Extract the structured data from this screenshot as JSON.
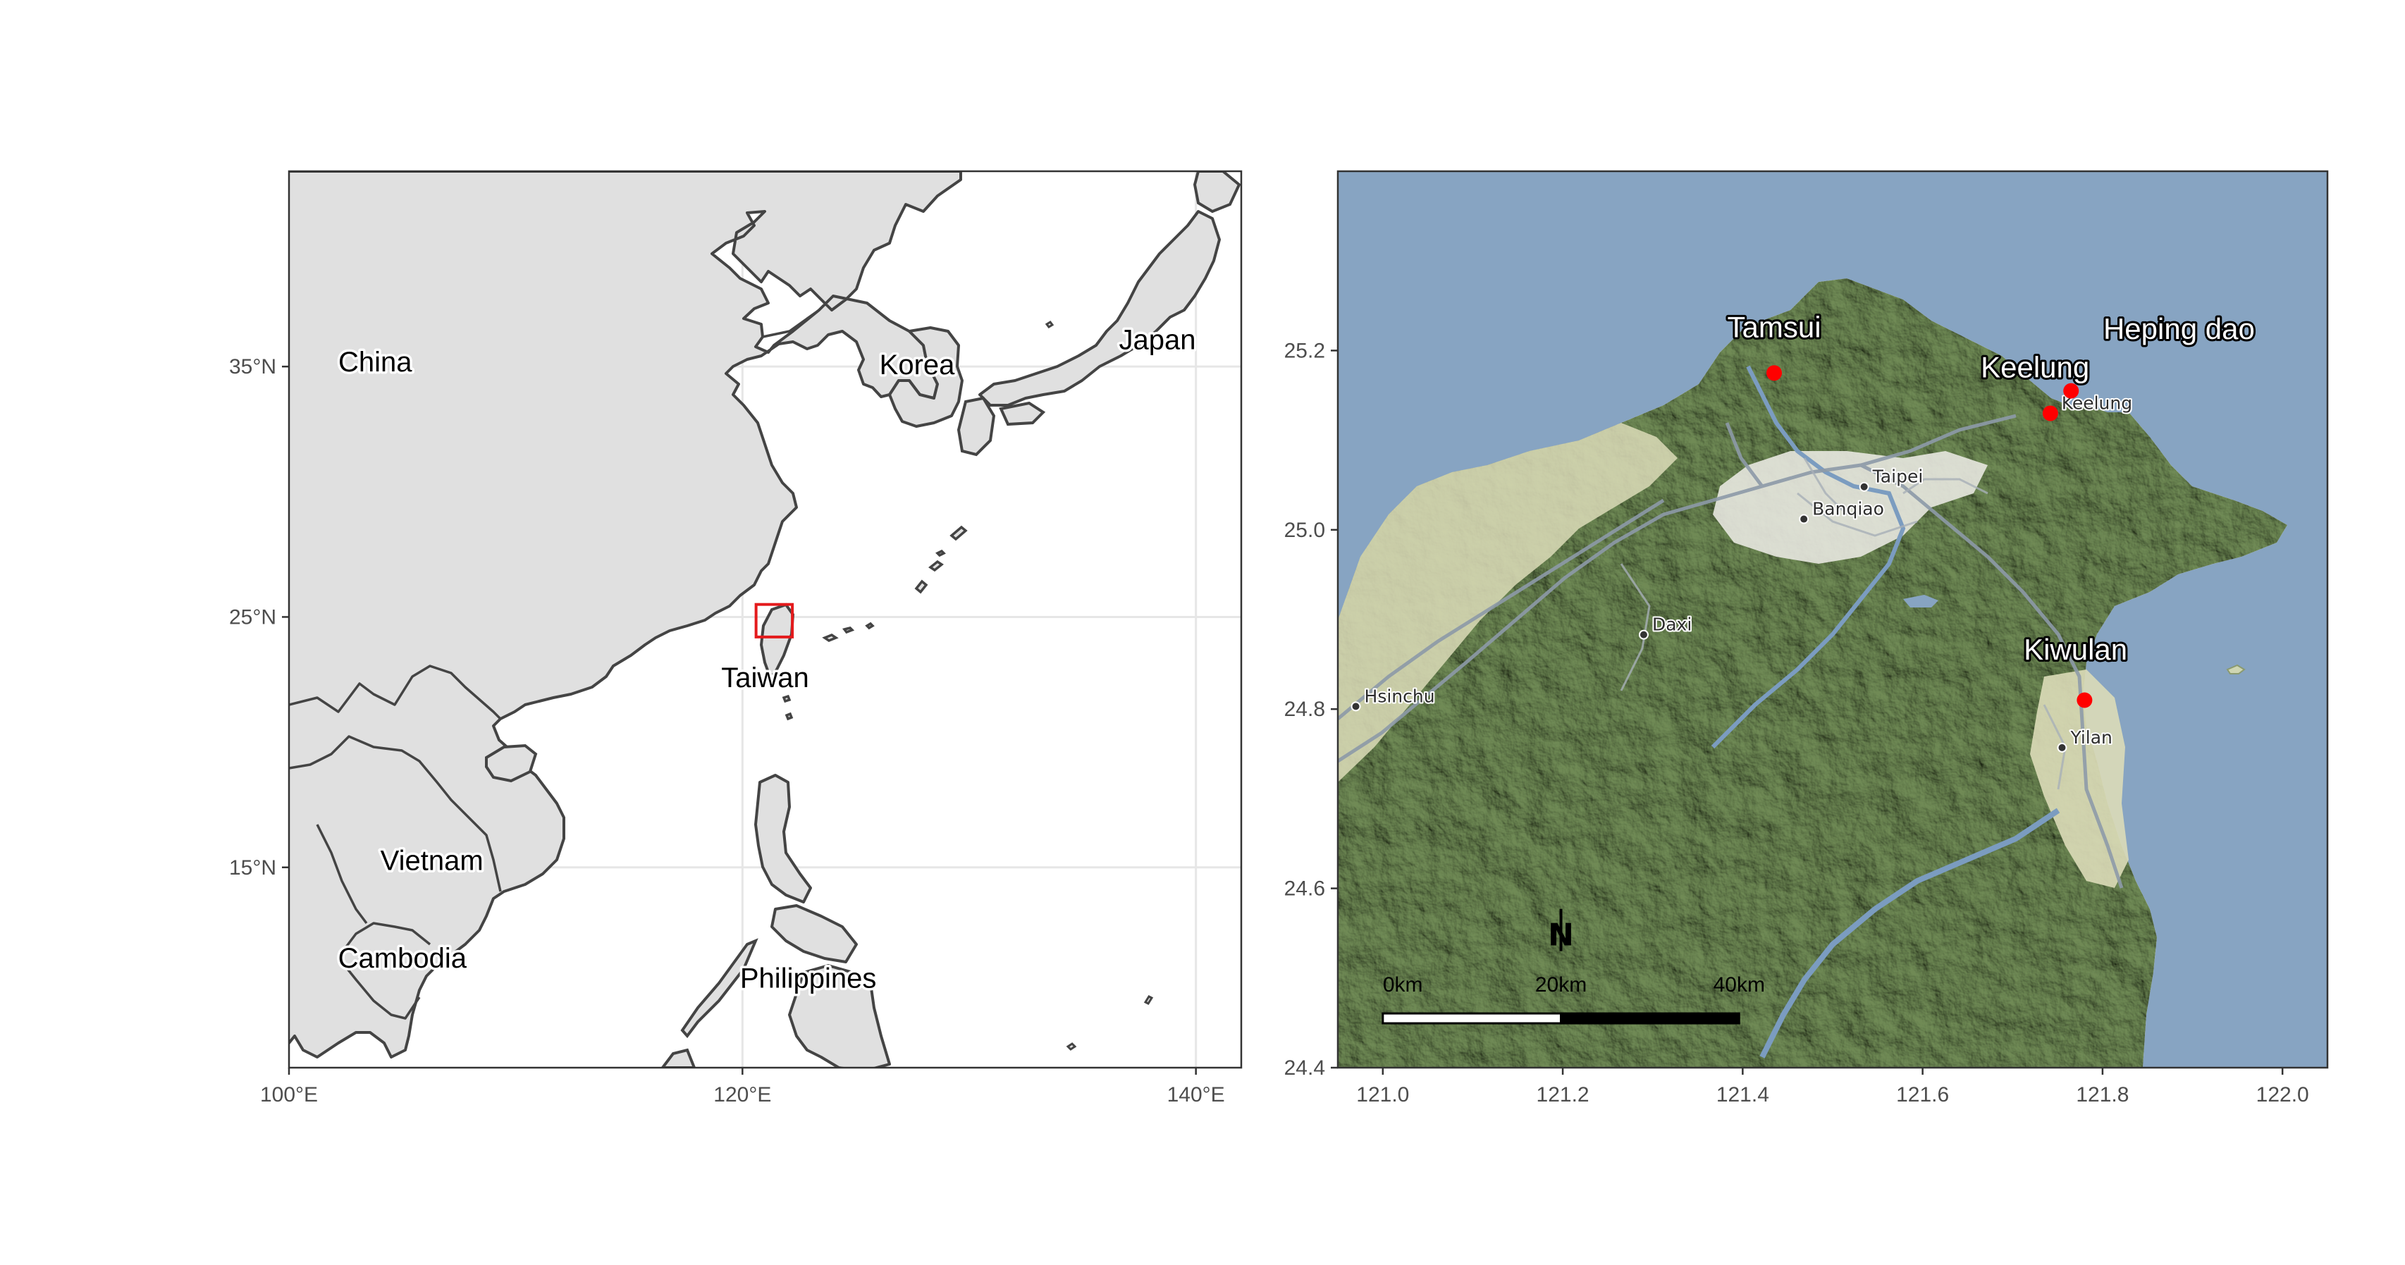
{
  "left_panel": {
    "x_ticks": [
      {
        "value": 100,
        "label": "100°E"
      },
      {
        "value": 120,
        "label": "120°E"
      },
      {
        "value": 140,
        "label": "140°E"
      }
    ],
    "y_ticks": [
      {
        "value": 35,
        "label": "35°N"
      },
      {
        "value": 25,
        "label": "25°N"
      },
      {
        "value": 15,
        "label": "15°N"
      }
    ],
    "x_range": [
      100,
      142
    ],
    "y_range": [
      7.0,
      42.8
    ],
    "country_labels": [
      {
        "name": "China",
        "lon": 103.8,
        "lat": 34.8
      },
      {
        "name": "Korea",
        "lon": 127.7,
        "lat": 34.7
      },
      {
        "name": "Japan",
        "lon": 138.3,
        "lat": 35.7
      },
      {
        "name": "Taiwan",
        "lon": 121.0,
        "lat": 22.2
      },
      {
        "name": "Vietnam",
        "lon": 106.3,
        "lat": 14.9
      },
      {
        "name": "Cambodia",
        "lon": 105.0,
        "lat": 11.0
      },
      {
        "name": "Philippines",
        "lon": 122.9,
        "lat": 10.2
      }
    ],
    "study_box": {
      "lon_min": 120.6,
      "lon_max": 122.2,
      "lat_min": 24.2,
      "lat_max": 25.5,
      "color": "#e41a1c"
    },
    "land_color": "#e0e0e0",
    "coast_color": "#444444"
  },
  "right_panel": {
    "x_ticks": [
      {
        "value": 121.0,
        "label": "121.0"
      },
      {
        "value": 121.2,
        "label": "121.2"
      },
      {
        "value": 121.4,
        "label": "121.4"
      },
      {
        "value": 121.6,
        "label": "121.6"
      },
      {
        "value": 121.8,
        "label": "121.8"
      },
      {
        "value": 122.0,
        "label": "122.0"
      }
    ],
    "y_ticks": [
      {
        "value": 25.2,
        "label": "25.2"
      },
      {
        "value": 25.0,
        "label": "25.0"
      },
      {
        "value": 24.8,
        "label": "24.8"
      },
      {
        "value": 24.6,
        "label": "24.6"
      },
      {
        "value": 24.4,
        "label": "24.4"
      }
    ],
    "x_range": [
      120.95,
      122.05
    ],
    "y_range": [
      24.4,
      25.4
    ],
    "sites": [
      {
        "name": "Tamsui",
        "lon": 121.435,
        "lat": 25.175,
        "label_lon": 121.435,
        "label_lat": 25.215
      },
      {
        "name": "Keelung",
        "lon": 121.742,
        "lat": 25.13,
        "label_lon": 121.725,
        "label_lat": 25.17
      },
      {
        "name": "Heping dao",
        "lon": 121.765,
        "lat": 25.155,
        "label_lon": 121.885,
        "label_lat": 25.213
      },
      {
        "name": "Kiwulan",
        "lon": 121.78,
        "lat": 24.81,
        "label_lon": 121.77,
        "label_lat": 24.855
      }
    ],
    "site_color": "#ff0000",
    "cities": [
      {
        "name": "Taipei",
        "lon": 121.535,
        "lat": 25.048
      },
      {
        "name": "Keelung",
        "lon": 121.745,
        "lat": 25.13
      },
      {
        "name": "Banqiao",
        "lon": 121.468,
        "lat": 25.012
      },
      {
        "name": "Daxi",
        "lon": 121.29,
        "lat": 24.883
      },
      {
        "name": "Hsinchu",
        "lon": 120.97,
        "lat": 24.803
      },
      {
        "name": "Yilan",
        "lon": 121.755,
        "lat": 24.757
      }
    ],
    "sea_color": "#87a4c2",
    "land_green": "#6f8a55",
    "lowland_color": "#dcdcb8",
    "north_arrow": "N",
    "scale_bar": {
      "labels": [
        "0km",
        "20km",
        "40km"
      ],
      "lon_start": 121.0,
      "lon_mid": 121.198,
      "lon_end": 121.396,
      "lat": 24.455
    }
  }
}
